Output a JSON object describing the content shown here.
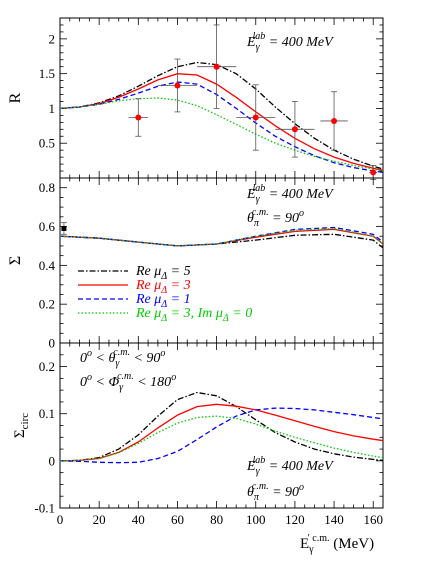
{
  "chart_data": [
    {
      "type": "line",
      "ylabel": "R",
      "xlim": [
        0,
        165
      ],
      "ylim": [
        0,
        2.3
      ],
      "xticks": [
        0,
        20,
        40,
        60,
        80,
        100,
        120,
        140,
        160
      ],
      "yticks": [
        "0.5",
        "1",
        "1.5",
        "2"
      ],
      "annotations": [
        {
          "main": "E",
          "sub": "γ",
          "sup": "lab",
          "rest": " = 400 MeV"
        }
      ],
      "series": [
        {
          "name": "Re μΔ = 5",
          "color": "#000000",
          "dash": "dashdot",
          "x": [
            0,
            10,
            20,
            30,
            40,
            50,
            60,
            70,
            80,
            90,
            100,
            110,
            120,
            130,
            140,
            150,
            160,
            165
          ],
          "y": [
            1.0,
            1.02,
            1.08,
            1.18,
            1.32,
            1.47,
            1.6,
            1.66,
            1.63,
            1.5,
            1.28,
            1.02,
            0.78,
            0.57,
            0.4,
            0.27,
            0.17,
            0.13
          ]
        },
        {
          "name": "Re μΔ = 3",
          "color": "#ff0000",
          "dash": "solid",
          "x": [
            0,
            10,
            20,
            30,
            40,
            50,
            60,
            70,
            80,
            90,
            100,
            110,
            120,
            130,
            140,
            150,
            160,
            165
          ],
          "y": [
            1.0,
            1.02,
            1.07,
            1.16,
            1.28,
            1.41,
            1.5,
            1.48,
            1.35,
            1.16,
            0.95,
            0.75,
            0.57,
            0.42,
            0.3,
            0.21,
            0.14,
            0.11
          ]
        },
        {
          "name": "Re μΔ = 1",
          "color": "#0000ff",
          "dash": "dashed",
          "x": [
            0,
            10,
            20,
            30,
            40,
            50,
            60,
            70,
            80,
            90,
            100,
            110,
            120,
            130,
            140,
            150,
            160,
            165
          ],
          "y": [
            1.0,
            1.02,
            1.06,
            1.13,
            1.22,
            1.32,
            1.38,
            1.35,
            1.2,
            1.0,
            0.79,
            0.6,
            0.45,
            0.32,
            0.22,
            0.15,
            0.1,
            0.08
          ]
        },
        {
          "name": "Re μΔ = 3, Im μΔ = 0",
          "color": "#00cc00",
          "dash": "dotted",
          "x": [
            0,
            10,
            20,
            30,
            40,
            50,
            60,
            70,
            80,
            90,
            100,
            110,
            120,
            130,
            140,
            150,
            160,
            165
          ],
          "y": [
            1.0,
            1.02,
            1.06,
            1.11,
            1.14,
            1.15,
            1.12,
            1.04,
            0.91,
            0.77,
            0.63,
            0.5,
            0.4,
            0.31,
            0.24,
            0.18,
            0.13,
            0.1
          ]
        }
      ],
      "points": {
        "color": "#ff0000",
        "x": [
          40,
          60,
          80,
          100,
          120,
          140,
          160
        ],
        "y": [
          0.87,
          1.33,
          1.6,
          0.87,
          0.7,
          0.82,
          0.08
        ],
        "yerr": [
          0.27,
          0.38,
          0.6,
          0.47,
          0.4,
          0.42,
          0.1
        ],
        "xerr": [
          5,
          10,
          10,
          10,
          10,
          7,
          2
        ]
      }
    },
    {
      "type": "line",
      "ylabel": "Σ",
      "xlim": [
        0,
        165
      ],
      "ylim": [
        0,
        0.85
      ],
      "yticks": [
        "0",
        "0.2",
        "0.4",
        "0.6",
        "0.8"
      ],
      "annotations": [
        {
          "main": "E",
          "sub": "γ",
          "sup": "lab",
          "rest": " = 400 MeV"
        },
        {
          "main": "θ",
          "sub": "π",
          "sup": "c.m.",
          "rest": " = 90",
          "rest_sup": "o"
        }
      ],
      "legend": [
        {
          "prefix": "Re μ",
          "sub": "Δ",
          "suffix": " = 5",
          "color": "#000000",
          "dash": "dashdot"
        },
        {
          "prefix": "Re μ",
          "sub": "Δ",
          "suffix": " = 3",
          "color": "#ff0000",
          "dash": "solid"
        },
        {
          "prefix": "Re μ",
          "sub": "Δ",
          "suffix": " = 1",
          "color": "#0000ff",
          "dash": "dashed"
        },
        {
          "prefix": "Re μ",
          "sub": "Δ",
          "suffix": " = 3, Im μ",
          "sub2": "Δ",
          "suffix2": " = 0",
          "color": "#00cc00",
          "dash": "dotted"
        }
      ],
      "series": [
        {
          "name": "Re μΔ = 5",
          "color": "#000000",
          "dash": "dashdot",
          "x": [
            0,
            20,
            40,
            60,
            80,
            100,
            120,
            140,
            160,
            165
          ],
          "y": [
            0.55,
            0.54,
            0.52,
            0.5,
            0.51,
            0.53,
            0.555,
            0.56,
            0.53,
            0.49
          ]
        },
        {
          "name": "Re μΔ = 3",
          "color": "#ff0000",
          "dash": "solid",
          "x": [
            0,
            20,
            40,
            60,
            80,
            100,
            120,
            140,
            160,
            165
          ],
          "y": [
            0.55,
            0.54,
            0.52,
            0.5,
            0.51,
            0.545,
            0.575,
            0.585,
            0.55,
            0.51
          ]
        },
        {
          "name": "Re μΔ = 1",
          "color": "#0000ff",
          "dash": "dashed",
          "x": [
            0,
            20,
            40,
            60,
            80,
            100,
            120,
            140,
            160,
            165
          ],
          "y": [
            0.55,
            0.54,
            0.52,
            0.5,
            0.51,
            0.55,
            0.585,
            0.595,
            0.56,
            0.52
          ]
        },
        {
          "name": "Re μΔ = 3, Im μΔ = 0",
          "color": "#00cc00",
          "dash": "dotted",
          "x": [
            0,
            20,
            40,
            60,
            80,
            100,
            120,
            140,
            160,
            165
          ],
          "y": [
            0.55,
            0.54,
            0.52,
            0.5,
            0.51,
            0.55,
            0.58,
            0.59,
            0.55,
            0.51
          ]
        }
      ],
      "points": {
        "color": "#000000",
        "marker": "square",
        "x": [
          2
        ],
        "y": [
          0.59
        ],
        "yerr": [
          0.03
        ],
        "xerr": [
          0
        ]
      }
    },
    {
      "type": "line",
      "ylabel": "Σcirc",
      "ylabel_main": "Σ",
      "ylabel_sub": "circ",
      "xlabel": "E",
      "xlabel_sub": "γ",
      "xlabel_sup": "′ c.m.",
      "xlabel_unit": " (MeV)",
      "xlim": [
        0,
        165
      ],
      "ylim": [
        -0.1,
        0.25
      ],
      "xticks": [
        "0",
        "20",
        "40",
        "60",
        "80",
        "100",
        "120",
        "140",
        "160"
      ],
      "yticks": [
        "-0.1",
        "0",
        "0.1",
        "0.2"
      ],
      "annotations": [
        {
          "main": "E",
          "sub": "γ",
          "sup": "lab",
          "rest": " = 400 MeV"
        },
        {
          "main": "θ",
          "sub": "π",
          "sup": "c.m.",
          "rest": " = 90",
          "rest_sup": "o"
        }
      ],
      "conditions": [
        {
          "pre": "0",
          "pre_sup": "o",
          "mid": " < θ",
          "sub": "γ",
          "sup": "c.m.",
          "post": " < 90",
          "post_sup": "o"
        },
        {
          "pre": "0",
          "pre_sup": "o",
          "mid": " < Φ",
          "sub": "γ",
          "sup": "c.m.",
          "post": " < 180",
          "post_sup": "o"
        }
      ],
      "series": [
        {
          "name": "Re μΔ = 5",
          "color": "#000000",
          "dash": "dashdot",
          "x": [
            0,
            10,
            20,
            30,
            40,
            50,
            60,
            70,
            80,
            90,
            100,
            110,
            120,
            130,
            140,
            150,
            160,
            165
          ],
          "y": [
            0,
            0.001,
            0.007,
            0.025,
            0.055,
            0.095,
            0.13,
            0.145,
            0.138,
            0.115,
            0.087,
            0.06,
            0.04,
            0.025,
            0.015,
            0.008,
            0.003,
            0.001
          ]
        },
        {
          "name": "Re μΔ = 3",
          "color": "#ff0000",
          "dash": "solid",
          "x": [
            0,
            10,
            20,
            30,
            40,
            50,
            60,
            70,
            80,
            90,
            100,
            110,
            120,
            130,
            140,
            150,
            160,
            165
          ],
          "y": [
            0,
            0.001,
            0.005,
            0.018,
            0.04,
            0.07,
            0.097,
            0.115,
            0.12,
            0.116,
            0.108,
            0.097,
            0.085,
            0.073,
            0.062,
            0.053,
            0.046,
            0.043
          ]
        },
        {
          "name": "Re μΔ = 1",
          "color": "#0000ff",
          "dash": "dashed",
          "x": [
            0,
            10,
            20,
            30,
            40,
            50,
            60,
            70,
            80,
            90,
            100,
            110,
            120,
            130,
            140,
            150,
            160,
            165
          ],
          "y": [
            0,
            -0.001,
            -0.003,
            -0.004,
            -0.003,
            0.005,
            0.02,
            0.045,
            0.072,
            0.095,
            0.108,
            0.112,
            0.111,
            0.108,
            0.103,
            0.098,
            0.092,
            0.089
          ]
        },
        {
          "name": "Re μΔ = 3, Im μΔ = 0",
          "color": "#00cc00",
          "dash": "dotted",
          "x": [
            0,
            10,
            20,
            30,
            40,
            50,
            60,
            70,
            80,
            90,
            100,
            110,
            120,
            130,
            140,
            150,
            160,
            165
          ],
          "y": [
            0,
            0.001,
            0.005,
            0.017,
            0.037,
            0.06,
            0.08,
            0.092,
            0.095,
            0.09,
            0.078,
            0.063,
            0.05,
            0.038,
            0.027,
            0.018,
            0.01,
            0.007
          ]
        }
      ]
    }
  ]
}
